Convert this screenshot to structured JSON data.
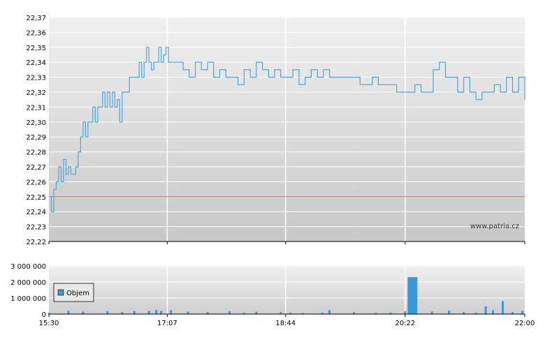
{
  "chart_data": [
    {
      "type": "line",
      "title": "",
      "xlabel": "",
      "ylabel": "",
      "ylim": [
        22.22,
        22.37
      ],
      "y_ticks": [
        "22,37",
        "22,36",
        "22,35",
        "22,34",
        "22,33",
        "22,32",
        "22,31",
        "22,30",
        "22,29",
        "22,28",
        "22,27",
        "22,26",
        "22,25",
        "22,24",
        "22,23",
        "22,22"
      ],
      "reference_line": {
        "value": 22.25,
        "color": "#e06060"
      },
      "line_color": "#4da6d9",
      "grid": true,
      "watermark": "www.patria.cz",
      "series": [
        {
          "x": [
            "15:30",
            "15:32",
            "15:34",
            "15:36",
            "15:38",
            "15:40",
            "15:42",
            "15:44",
            "15:46",
            "15:48",
            "15:50",
            "15:52",
            "15:54",
            "15:56",
            "15:58",
            "16:00",
            "16:02",
            "16:04",
            "16:06",
            "16:08",
            "16:10",
            "16:12",
            "16:14",
            "16:16",
            "16:18",
            "16:20",
            "16:22",
            "16:24",
            "16:26",
            "16:28",
            "16:30",
            "16:32",
            "16:34",
            "16:36",
            "16:38",
            "16:40",
            "16:42",
            "16:44",
            "16:46",
            "16:48",
            "16:50",
            "16:52",
            "16:54",
            "16:56",
            "16:58",
            "17:00",
            "17:02",
            "17:04",
            "17:06",
            "17:08",
            "17:10",
            "17:12",
            "17:15",
            "17:20",
            "17:25",
            "17:30",
            "17:35",
            "17:40",
            "17:45",
            "17:50",
            "17:55",
            "18:00",
            "18:05",
            "18:10",
            "18:15",
            "18:20",
            "18:25",
            "18:30",
            "18:35",
            "18:40",
            "18:45",
            "18:50",
            "18:55",
            "19:00",
            "19:05",
            "19:10",
            "19:15",
            "19:20",
            "19:25",
            "19:30",
            "19:35",
            "19:40",
            "19:45",
            "19:50",
            "19:55",
            "20:00",
            "20:05",
            "20:10",
            "20:15",
            "20:20",
            "20:25",
            "20:30",
            "20:35",
            "20:40",
            "20:45",
            "20:50",
            "20:55",
            "21:00",
            "21:05",
            "21:10",
            "21:15",
            "21:20",
            "21:25",
            "21:30",
            "21:35",
            "21:40",
            "21:45",
            "21:50",
            "21:55",
            "22:00"
          ],
          "values": [
            22.25,
            22.24,
            22.255,
            22.26,
            22.27,
            22.26,
            22.275,
            22.265,
            22.27,
            22.265,
            22.265,
            22.27,
            22.28,
            22.29,
            22.3,
            22.29,
            22.3,
            22.3,
            22.31,
            22.3,
            22.31,
            22.31,
            22.32,
            22.31,
            22.32,
            22.31,
            22.32,
            22.31,
            22.315,
            22.3,
            22.32,
            22.32,
            22.32,
            22.33,
            22.33,
            22.33,
            22.33,
            22.34,
            22.33,
            22.34,
            22.35,
            22.34,
            22.335,
            22.34,
            22.34,
            22.35,
            22.34,
            22.345,
            22.35,
            22.34,
            22.34,
            22.34,
            22.34,
            22.335,
            22.33,
            22.34,
            22.335,
            22.34,
            22.33,
            22.335,
            22.33,
            22.33,
            22.325,
            22.335,
            22.33,
            22.34,
            22.335,
            22.33,
            22.335,
            22.33,
            22.33,
            22.335,
            22.325,
            22.33,
            22.335,
            22.33,
            22.335,
            22.33,
            22.33,
            22.33,
            22.33,
            22.33,
            22.325,
            22.325,
            22.33,
            22.325,
            22.325,
            22.325,
            22.32,
            22.32,
            22.32,
            22.325,
            22.32,
            22.32,
            22.335,
            22.34,
            22.33,
            22.33,
            22.32,
            22.33,
            22.32,
            22.315,
            22.32,
            22.32,
            22.325,
            22.32,
            22.33,
            22.32,
            22.33,
            22.315
          ]
        }
      ]
    },
    {
      "type": "bar",
      "title": "",
      "xlabel": "",
      "ylabel": "",
      "ylim": [
        0,
        3000000
      ],
      "y_ticks": [
        "3 000 000",
        "2 000 000",
        "1 000 000",
        "0"
      ],
      "x_ticks": [
        "15:30",
        "17:07",
        "18:44",
        "20:22",
        "22:00"
      ],
      "legend": {
        "label": "Objem",
        "placement": "left"
      },
      "bar_color": "#3a9ad6",
      "grid": true,
      "series": [
        {
          "name": "Objem",
          "x": [
            "15:30",
            "15:46",
            "15:58",
            "16:18",
            "16:30",
            "16:40",
            "16:52",
            "16:58",
            "17:02",
            "17:10",
            "17:24",
            "17:40",
            "17:58",
            "18:10",
            "18:20",
            "18:40",
            "18:48",
            "18:58",
            "19:14",
            "19:20",
            "19:40",
            "19:58",
            "20:10",
            "20:22",
            "20:28",
            "20:44",
            "20:58",
            "21:10",
            "21:20",
            "21:28",
            "21:34",
            "21:42",
            "21:50",
            "21:58"
          ],
          "values": [
            80000,
            200000,
            150000,
            180000,
            120000,
            200000,
            200000,
            250000,
            200000,
            250000,
            150000,
            120000,
            180000,
            90000,
            150000,
            120000,
            80000,
            60000,
            90000,
            250000,
            120000,
            80000,
            90000,
            180000,
            2300000,
            160000,
            220000,
            120000,
            90000,
            480000,
            240000,
            800000,
            120000,
            200000
          ]
        }
      ]
    }
  ]
}
